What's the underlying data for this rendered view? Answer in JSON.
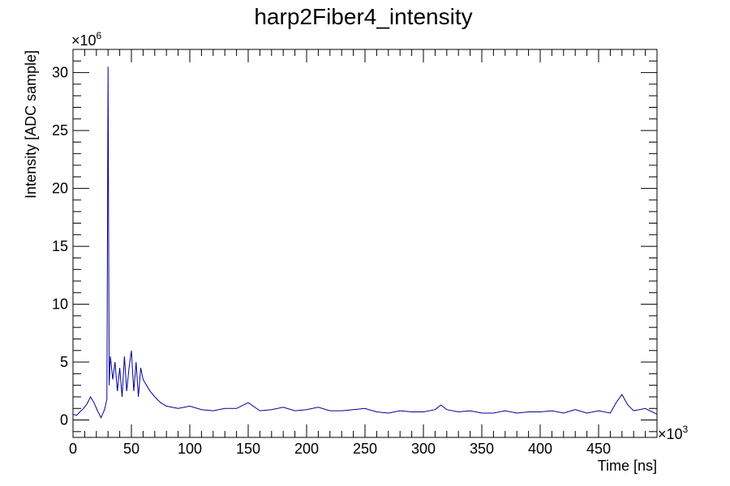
{
  "chart_data": {
    "type": "line",
    "title": "harp2Fiber4_intensity",
    "xlabel": "Time [ns]",
    "ylabel": "Intensity [ADC sample]",
    "x_multiplier": {
      "base": "×10",
      "exp": "3"
    },
    "y_multiplier": {
      "base": "×10",
      "exp": "6"
    },
    "xlim": [
      0,
      500
    ],
    "ylim": [
      -1.5,
      32
    ],
    "x_ticks": [
      0,
      50,
      100,
      150,
      200,
      250,
      300,
      350,
      400,
      450
    ],
    "x_tick_labels": [
      "0",
      "50",
      "100",
      "150",
      "200",
      "250",
      "300",
      "350",
      "400",
      "450"
    ],
    "y_ticks": [
      0,
      5,
      10,
      15,
      20,
      25,
      30
    ],
    "y_tick_labels": [
      "0",
      "5",
      "10",
      "15",
      "20",
      "25",
      "30"
    ],
    "grid": false,
    "legend": "none",
    "line_color": "#000099",
    "series": [
      {
        "x": [
          0,
          3,
          6,
          9,
          12,
          15,
          18,
          21,
          24,
          27,
          29,
          30,
          31,
          32,
          34,
          36,
          38,
          40,
          42,
          44,
          46,
          48,
          50,
          52,
          54,
          56,
          58,
          60,
          63,
          66,
          70,
          75,
          80,
          90,
          100,
          110,
          120,
          130,
          140,
          150,
          160,
          170,
          180,
          190,
          200,
          210,
          220,
          230,
          240,
          250,
          260,
          270,
          280,
          290,
          300,
          310,
          315,
          320,
          330,
          340,
          350,
          360,
          370,
          380,
          390,
          400,
          410,
          420,
          430,
          440,
          450,
          460,
          465,
          470,
          475,
          480,
          490,
          500
        ],
        "y": [
          0.5,
          0.4,
          0.7,
          1.0,
          1.4,
          2.0,
          1.5,
          0.8,
          0.2,
          0.9,
          1.8,
          30.5,
          3.0,
          5.5,
          3.5,
          5.0,
          2.5,
          4.5,
          2.0,
          5.5,
          2.5,
          4.5,
          6.0,
          2.5,
          5.0,
          2.0,
          4.5,
          3.5,
          3.0,
          2.5,
          2.0,
          1.5,
          1.2,
          1.0,
          1.2,
          0.9,
          0.8,
          1.0,
          1.0,
          1.5,
          0.8,
          0.9,
          1.1,
          0.8,
          0.9,
          1.1,
          0.8,
          0.8,
          0.9,
          1.0,
          0.7,
          0.6,
          0.8,
          0.7,
          0.7,
          0.9,
          1.3,
          0.9,
          0.7,
          0.8,
          0.6,
          0.6,
          0.8,
          0.6,
          0.7,
          0.7,
          0.8,
          0.6,
          0.9,
          0.6,
          0.8,
          0.6,
          1.5,
          2.2,
          1.3,
          0.8,
          1.0,
          0.5
        ]
      }
    ]
  }
}
